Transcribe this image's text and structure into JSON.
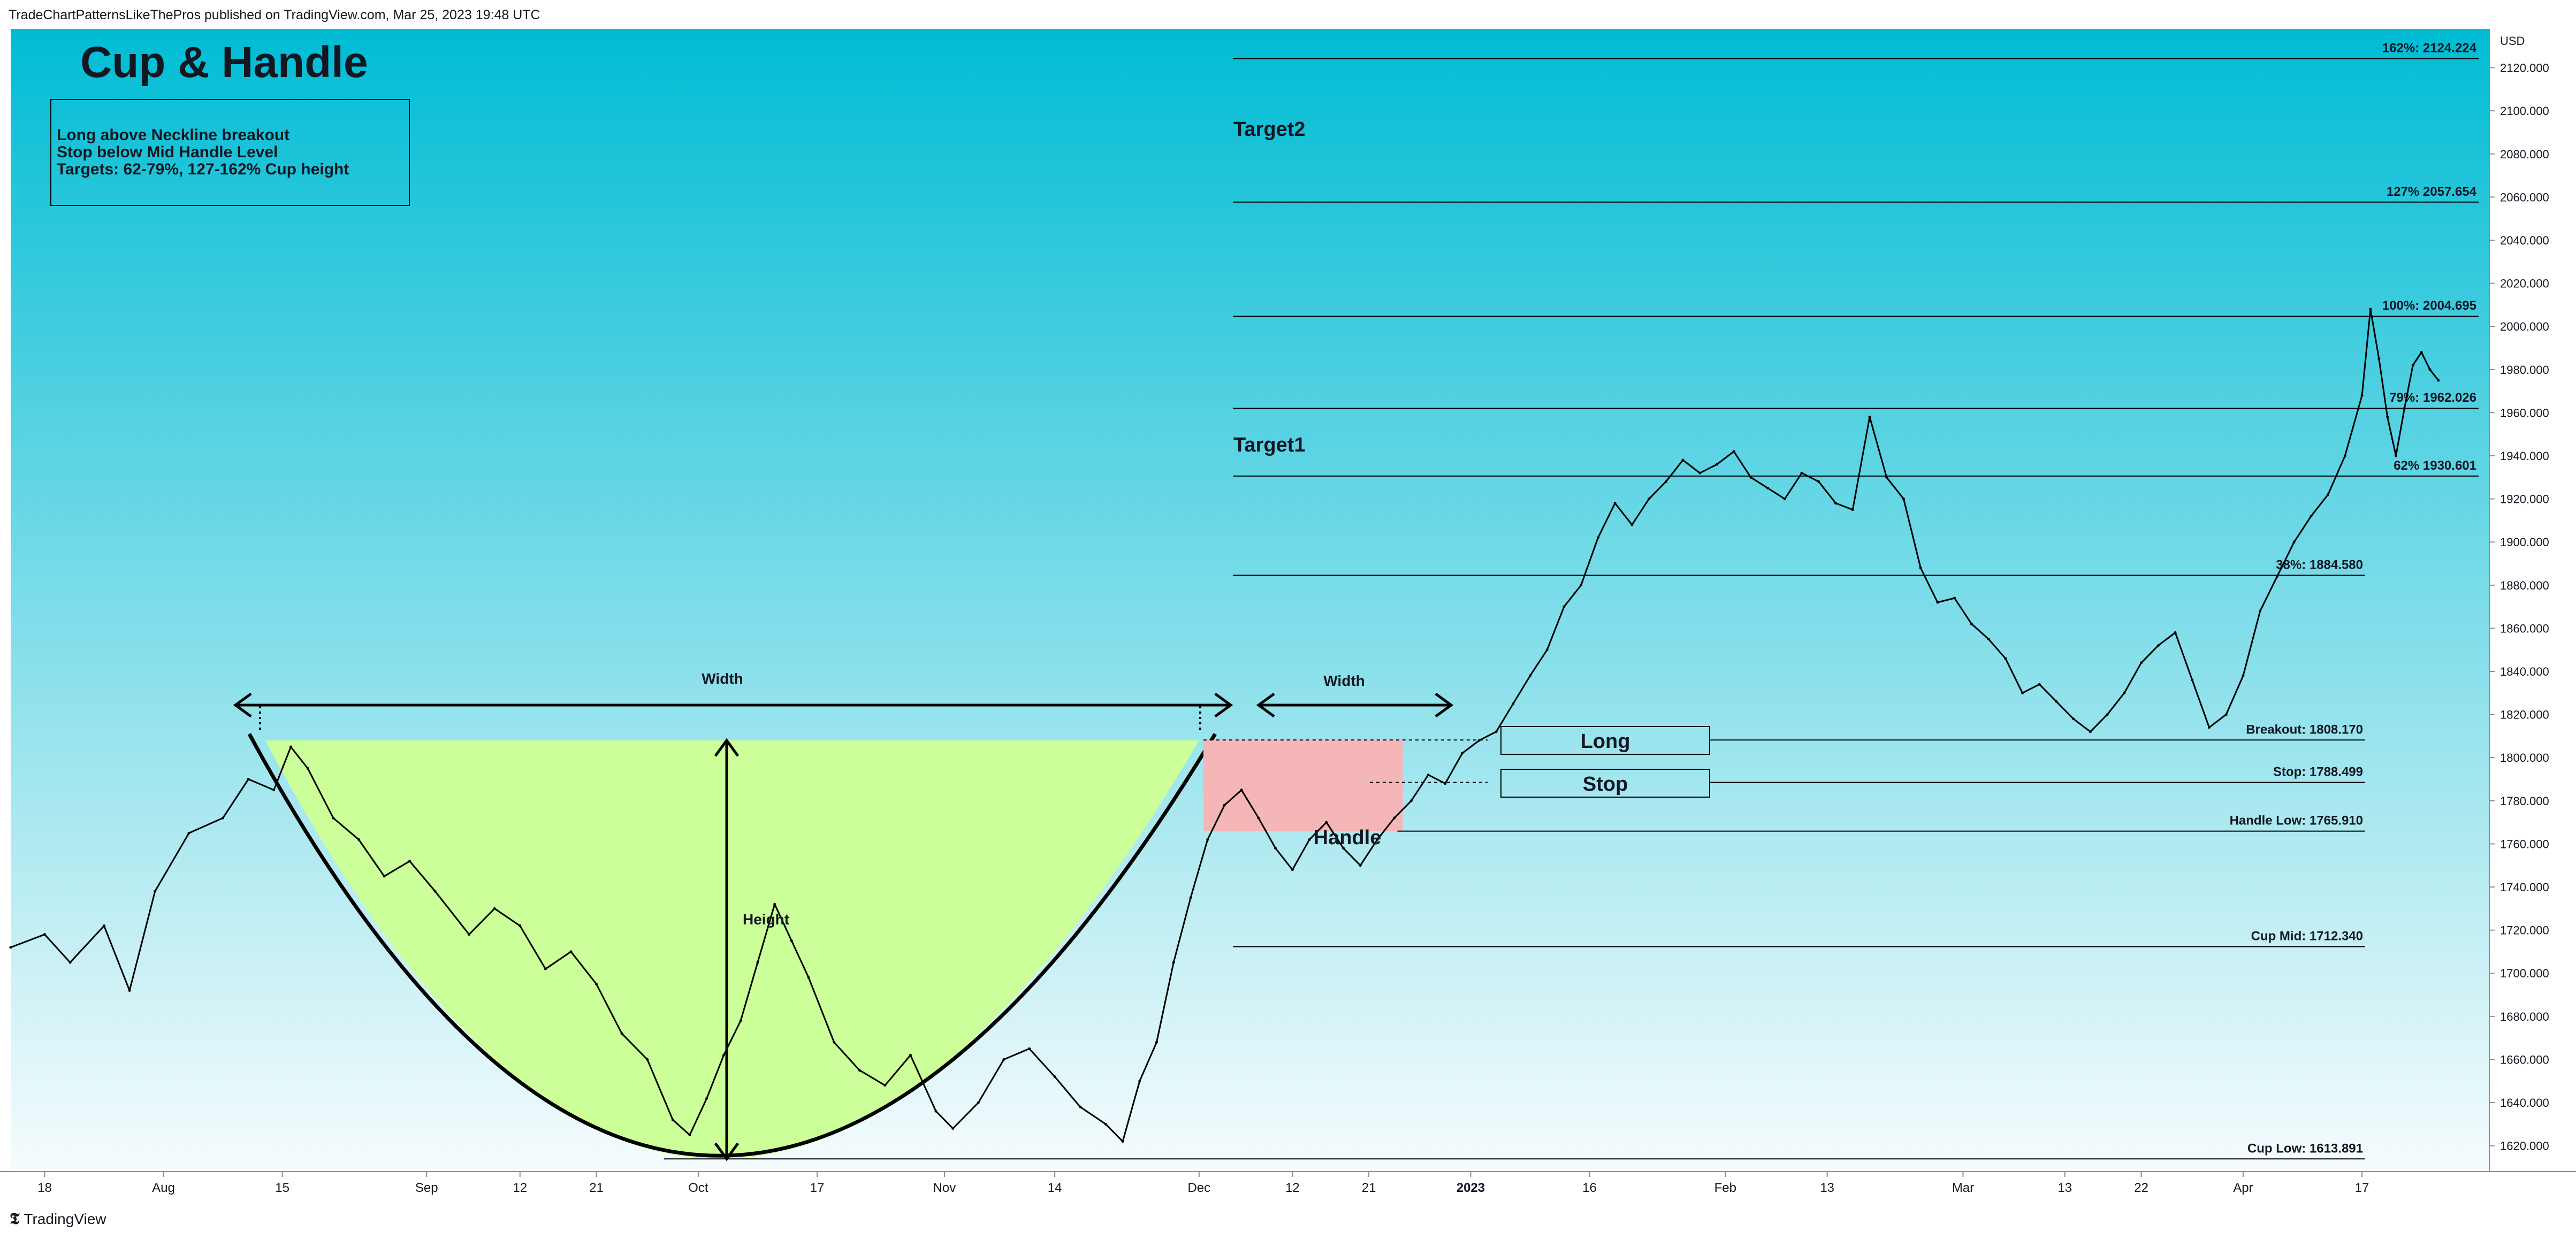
{
  "header": {
    "published": "TradeChartPatternsLikeThePros published on TradingView.com, Mar 25, 2023 19:48 UTC"
  },
  "footer": {
    "brand_name": "TradingView",
    "brand_icon": "tradingview-logo-icon"
  },
  "colors": {
    "bg_top": "#00bcd4",
    "bg_bottom": "#f7fcfd",
    "cup_fill": "#ccff99",
    "handle_fill": "#f4b6b6",
    "price_line": "#000000"
  },
  "chart_data": {
    "type": "line",
    "title": "Cup & Handle",
    "currency": "USD",
    "notes": [
      "Long above Neckline breakout",
      "Stop below Mid Handle Level",
      "Targets: 62-79%, 127-162% Cup height"
    ],
    "y_ticks": [
      1620,
      1640,
      1660,
      1680,
      1700,
      1720,
      1740,
      1760,
      1780,
      1800,
      1820,
      1840,
      1860,
      1880,
      1900,
      1920,
      1940,
      1960,
      1980,
      2000,
      2020,
      2040,
      2060,
      2080,
      2100,
      2120
    ],
    "y_tick_format": "decimal3",
    "ylim": [
      1608,
      2138
    ],
    "x_ticks": [
      {
        "label": "18",
        "date": "2022-07-18"
      },
      {
        "label": "Aug",
        "date": "2022-08-01"
      },
      {
        "label": "15",
        "date": "2022-08-15"
      },
      {
        "label": "Sep",
        "date": "2022-09-01"
      },
      {
        "label": "12",
        "date": "2022-09-12"
      },
      {
        "label": "21",
        "date": "2022-09-21"
      },
      {
        "label": "Oct",
        "date": "2022-10-03"
      },
      {
        "label": "17",
        "date": "2022-10-17"
      },
      {
        "label": "Nov",
        "date": "2022-11-01"
      },
      {
        "label": "14",
        "date": "2022-11-14"
      },
      {
        "label": "Dec",
        "date": "2022-12-01"
      },
      {
        "label": "12",
        "date": "2022-12-12"
      },
      {
        "label": "21",
        "date": "2022-12-21"
      },
      {
        "label": "2023",
        "date": "2023-01-02",
        "bold": true
      },
      {
        "label": "16",
        "date": "2023-01-16"
      },
      {
        "label": "Feb",
        "date": "2023-02-01"
      },
      {
        "label": "13",
        "date": "2023-02-13"
      },
      {
        "label": "Mar",
        "date": "2023-03-01"
      },
      {
        "label": "13",
        "date": "2023-03-13"
      },
      {
        "label": "22",
        "date": "2023-03-22"
      },
      {
        "label": "Apr",
        "date": "2023-04-03"
      },
      {
        "label": "17",
        "date": "2023-04-17"
      }
    ],
    "xlim": [
      "2022-07-14",
      "2023-05-02"
    ],
    "series": [
      {
        "points": [
          [
            "2022-07-14",
            1712
          ],
          [
            "2022-07-18",
            1718
          ],
          [
            "2022-07-21",
            1705
          ],
          [
            "2022-07-25",
            1722
          ],
          [
            "2022-07-28",
            1692
          ],
          [
            "2022-07-31",
            1738
          ],
          [
            "2022-08-04",
            1765
          ],
          [
            "2022-08-08",
            1772
          ],
          [
            "2022-08-11",
            1790
          ],
          [
            "2022-08-14",
            1785
          ],
          [
            "2022-08-16",
            1805
          ],
          [
            "2022-08-18",
            1795
          ],
          [
            "2022-08-21",
            1772
          ],
          [
            "2022-08-24",
            1762
          ],
          [
            "2022-08-27",
            1745
          ],
          [
            "2022-08-30",
            1752
          ],
          [
            "2022-09-02",
            1738
          ],
          [
            "2022-09-06",
            1718
          ],
          [
            "2022-09-09",
            1730
          ],
          [
            "2022-09-12",
            1722
          ],
          [
            "2022-09-15",
            1702
          ],
          [
            "2022-09-18",
            1710
          ],
          [
            "2022-09-21",
            1695
          ],
          [
            "2022-09-24",
            1672
          ],
          [
            "2022-09-27",
            1660
          ],
          [
            "2022-09-30",
            1632
          ],
          [
            "2022-10-02",
            1625
          ],
          [
            "2022-10-04",
            1642
          ],
          [
            "2022-10-06",
            1662
          ],
          [
            "2022-10-08",
            1678
          ],
          [
            "2022-10-10",
            1705
          ],
          [
            "2022-10-12",
            1732
          ],
          [
            "2022-10-14",
            1715
          ],
          [
            "2022-10-16",
            1698
          ],
          [
            "2022-10-19",
            1668
          ],
          [
            "2022-10-22",
            1655
          ],
          [
            "2022-10-25",
            1648
          ],
          [
            "2022-10-28",
            1662
          ],
          [
            "2022-10-31",
            1636
          ],
          [
            "2022-11-02",
            1628
          ],
          [
            "2022-11-05",
            1640
          ],
          [
            "2022-11-08",
            1660
          ],
          [
            "2022-11-11",
            1665
          ],
          [
            "2022-11-14",
            1652
          ],
          [
            "2022-11-17",
            1638
          ],
          [
            "2022-11-20",
            1630
          ],
          [
            "2022-11-22",
            1622
          ],
          [
            "2022-11-24",
            1650
          ],
          [
            "2022-11-26",
            1668
          ],
          [
            "2022-11-28",
            1705
          ],
          [
            "2022-11-30",
            1735
          ],
          [
            "2022-12-02",
            1762
          ],
          [
            "2022-12-04",
            1778
          ],
          [
            "2022-12-06",
            1785
          ],
          [
            "2022-12-08",
            1772
          ],
          [
            "2022-12-10",
            1758
          ],
          [
            "2022-12-12",
            1748
          ],
          [
            "2022-12-14",
            1762
          ],
          [
            "2022-12-16",
            1770
          ],
          [
            "2022-12-18",
            1758
          ],
          [
            "2022-12-20",
            1750
          ],
          [
            "2022-12-22",
            1762
          ],
          [
            "2022-12-24",
            1772
          ],
          [
            "2022-12-26",
            1780
          ],
          [
            "2022-12-28",
            1792
          ],
          [
            "2022-12-30",
            1788
          ],
          [
            "2023-01-01",
            1802
          ],
          [
            "2023-01-03",
            1808
          ],
          [
            "2023-01-05",
            1812
          ],
          [
            "2023-01-07",
            1825
          ],
          [
            "2023-01-09",
            1838
          ],
          [
            "2023-01-11",
            1850
          ],
          [
            "2023-01-13",
            1870
          ],
          [
            "2023-01-15",
            1880
          ],
          [
            "2023-01-17",
            1902
          ],
          [
            "2023-01-19",
            1918
          ],
          [
            "2023-01-21",
            1908
          ],
          [
            "2023-01-23",
            1920
          ],
          [
            "2023-01-25",
            1928
          ],
          [
            "2023-01-27",
            1938
          ],
          [
            "2023-01-29",
            1932
          ],
          [
            "2023-01-31",
            1936
          ],
          [
            "2023-02-02",
            1942
          ],
          [
            "2023-02-04",
            1930
          ],
          [
            "2023-02-06",
            1925
          ],
          [
            "2023-02-08",
            1920
          ],
          [
            "2023-02-10",
            1932
          ],
          [
            "2023-02-12",
            1928
          ],
          [
            "2023-02-14",
            1918
          ],
          [
            "2023-02-16",
            1915
          ],
          [
            "2023-02-18",
            1958
          ],
          [
            "2023-02-20",
            1930
          ],
          [
            "2023-02-22",
            1920
          ],
          [
            "2023-02-24",
            1888
          ],
          [
            "2023-02-26",
            1872
          ],
          [
            "2023-02-28",
            1874
          ],
          [
            "2023-03-02",
            1862
          ],
          [
            "2023-03-04",
            1855
          ],
          [
            "2023-03-06",
            1846
          ],
          [
            "2023-03-08",
            1830
          ],
          [
            "2023-03-10",
            1834
          ],
          [
            "2023-03-12",
            1826
          ],
          [
            "2023-03-14",
            1818
          ],
          [
            "2023-03-16",
            1812
          ],
          [
            "2023-03-18",
            1820
          ],
          [
            "2023-03-20",
            1830
          ],
          [
            "2023-03-22",
            1844
          ],
          [
            "2023-03-24",
            1852
          ],
          [
            "2023-03-26",
            1858
          ],
          [
            "2023-03-28",
            1836
          ],
          [
            "2023-03-30",
            1814
          ],
          [
            "2023-04-01",
            1820
          ],
          [
            "2023-04-03",
            1838
          ],
          [
            "2023-04-05",
            1868
          ],
          [
            "2023-04-07",
            1884
          ],
          [
            "2023-04-09",
            1900
          ],
          [
            "2023-04-11",
            1912
          ],
          [
            "2023-04-13",
            1922
          ],
          [
            "2023-04-15",
            1940
          ],
          [
            "2023-04-17",
            1968
          ],
          [
            "2023-04-18",
            2008
          ],
          [
            "2023-04-19",
            1985
          ],
          [
            "2023-04-20",
            1958
          ],
          [
            "2023-04-21",
            1940
          ],
          [
            "2023-04-22",
            1962
          ],
          [
            "2023-04-23",
            1982
          ],
          [
            "2023-04-24",
            1988
          ],
          [
            "2023-04-25",
            1980
          ],
          [
            "2023-04-26",
            1975
          ]
        ]
      }
    ],
    "cup": {
      "start": "2022-08-13",
      "bottom": "2022-10-04",
      "end": "2022-12-01",
      "rim": 1808,
      "low": 1613.891
    },
    "handle": {
      "start": "2022-12-01",
      "end": "2022-12-25",
      "top": 1808.17,
      "bottom": 1765.91
    },
    "levels": [
      {
        "label": "162%: 2124.224",
        "value": 2124.224
      },
      {
        "label": "127% 2057.654",
        "value": 2057.654
      },
      {
        "label": "100%: 2004.695",
        "value": 2004.695
      },
      {
        "label": "79%: 1962.026",
        "value": 1962.026
      },
      {
        "label": "62% 1930.601",
        "value": 1930.601
      },
      {
        "label": "38%: 1884.580",
        "value": 1884.58
      },
      {
        "label": "Breakout: 1808.170",
        "value": 1808.17
      },
      {
        "label": "Stop: 1788.499",
        "value": 1788.499
      },
      {
        "label": "Handle Low: 1765.910",
        "value": 1765.91
      },
      {
        "label": "Cup Mid: 1712.340",
        "value": 1712.34
      },
      {
        "label": "Cup Low: 1613.891",
        "value": 1613.891
      }
    ],
    "annotations": {
      "width_cup": "Width",
      "width_handle": "Width",
      "height": "Height",
      "handle": "Handle",
      "target1": "Target1",
      "target2": "Target2",
      "long": "Long",
      "stop": "Stop"
    }
  }
}
